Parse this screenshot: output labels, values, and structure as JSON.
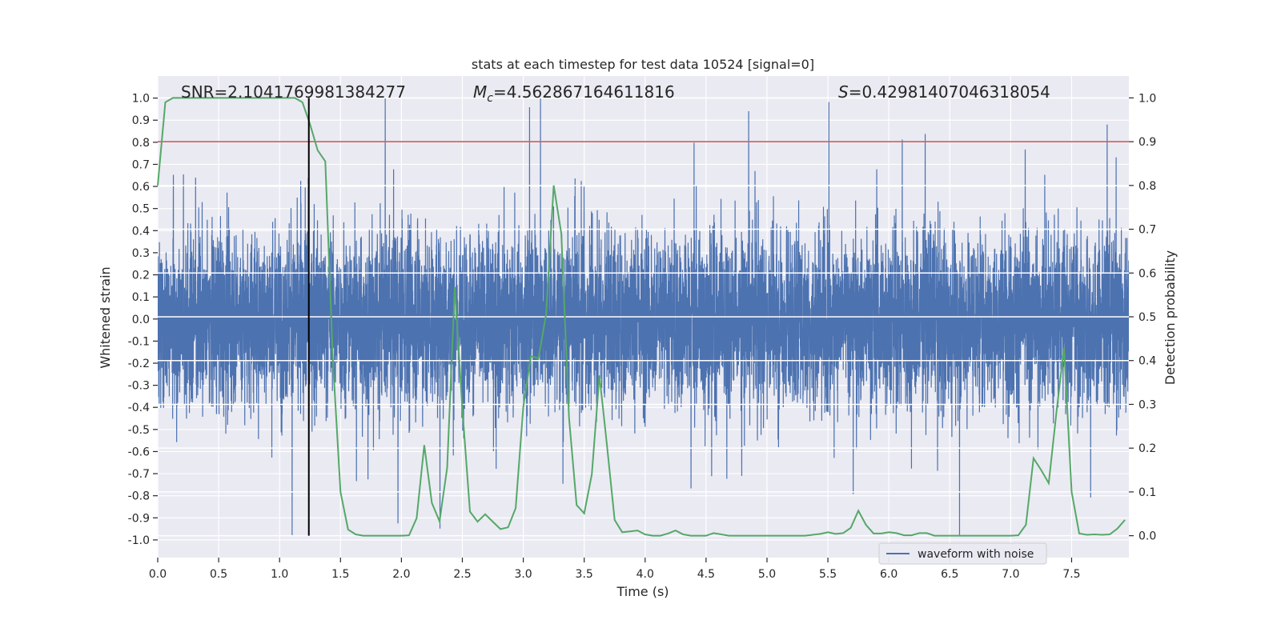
{
  "chart_data": {
    "type": "line",
    "title": "stats at each timestep for test data 10524 [signal=0]",
    "xlabel": "Time (s)",
    "ylabel_left": "Whitened strain",
    "ylabel_right": "Detection probability",
    "xlim": [
      0,
      7.97
    ],
    "ylim_left": [
      -1.08,
      1.1
    ],
    "ylim_right": [
      -0.05,
      1.05
    ],
    "x_ticks": [
      "0.0",
      "0.5",
      "1.0",
      "1.5",
      "2.0",
      "2.5",
      "3.0",
      "3.5",
      "4.0",
      "4.5",
      "5.0",
      "5.5",
      "6.0",
      "6.5",
      "7.0",
      "7.5"
    ],
    "y_left_ticks": [
      "-1.0",
      "-0.9",
      "-0.8",
      "-0.7",
      "-0.6",
      "-0.5",
      "-0.4",
      "-0.3",
      "-0.2",
      "-0.1",
      "0.0",
      "0.1",
      "0.2",
      "0.3",
      "0.4",
      "0.5",
      "0.6",
      "0.7",
      "0.8",
      "0.9",
      "1.0"
    ],
    "y_right_ticks": [
      "0.0",
      "0.1",
      "0.2",
      "0.3",
      "0.4",
      "0.5",
      "0.6",
      "0.7",
      "0.8",
      "0.9",
      "1.0"
    ],
    "grid": true,
    "legend": {
      "placement": "lower-right",
      "entries": [
        "waveform with noise"
      ]
    },
    "annotations": {
      "snr": "SNR=2.1041769981384277",
      "mc_symbol": "M",
      "mc_sub": "c",
      "mc_value": "=4.562867164611816",
      "s_symbol": "S",
      "s_value": "=0.42981407046318054"
    },
    "series": [
      {
        "name": "waveform with noise",
        "axis": "left",
        "color": "#4c72b0",
        "kind": "dense noise",
        "peak_max": {
          "x": 2.1,
          "y": 1.0
        },
        "peak_min": {
          "x": 4.7,
          "y": -0.98
        }
      },
      {
        "axis": "right",
        "color": "#55a868",
        "x_step": 0.0625,
        "values": [
          0.8,
          0.99,
          1.0,
          1.0,
          1.0,
          1.0,
          1.0,
          1.0,
          1.0,
          1.0,
          1.0,
          1.0,
          1.0,
          1.0,
          1.0,
          1.0,
          1.0,
          1.0,
          1.0,
          0.99,
          0.94,
          0.88,
          0.855,
          0.4,
          0.1,
          0.014,
          0.003,
          0,
          0,
          0,
          0,
          0,
          0,
          0.001,
          0.04,
          0.207,
          0.075,
          0.033,
          0.155,
          0.568,
          0.29,
          0.055,
          0.032,
          0.049,
          0.032,
          0.015,
          0.019,
          0.063,
          0.294,
          0.41,
          0.405,
          0.506,
          0.8,
          0.69,
          0.27,
          0.07,
          0.051,
          0.14,
          0.366,
          0.205,
          0.036,
          0.008,
          0.01,
          0.012,
          0.003,
          0,
          0,
          0.005,
          0.012,
          0.003,
          0,
          0,
          0,
          0.006,
          0.003,
          0,
          0,
          0,
          0,
          0,
          0,
          0,
          0,
          0,
          0,
          0,
          0.002,
          0.004,
          0.008,
          0.004,
          0.006,
          0.018,
          0.057,
          0.025,
          0.005,
          0.005,
          0.008,
          0.006,
          0.001,
          0.001,
          0.006,
          0.006,
          0,
          0,
          0,
          0,
          0,
          0,
          0,
          0,
          0,
          0,
          0,
          0.001,
          0.025,
          0.177,
          0.15,
          0.12,
          0.28,
          0.43,
          0.1,
          0.005,
          0.002,
          0.003,
          0.002,
          0.003,
          0.016,
          0.036
        ]
      }
    ],
    "threshold_line": {
      "axis": "right",
      "y": 0.9,
      "color": "#c44e52"
    },
    "marker_line": {
      "axis": "right",
      "x": 1.24,
      "y_range": [
        0,
        1
      ],
      "color": "#000000"
    }
  }
}
